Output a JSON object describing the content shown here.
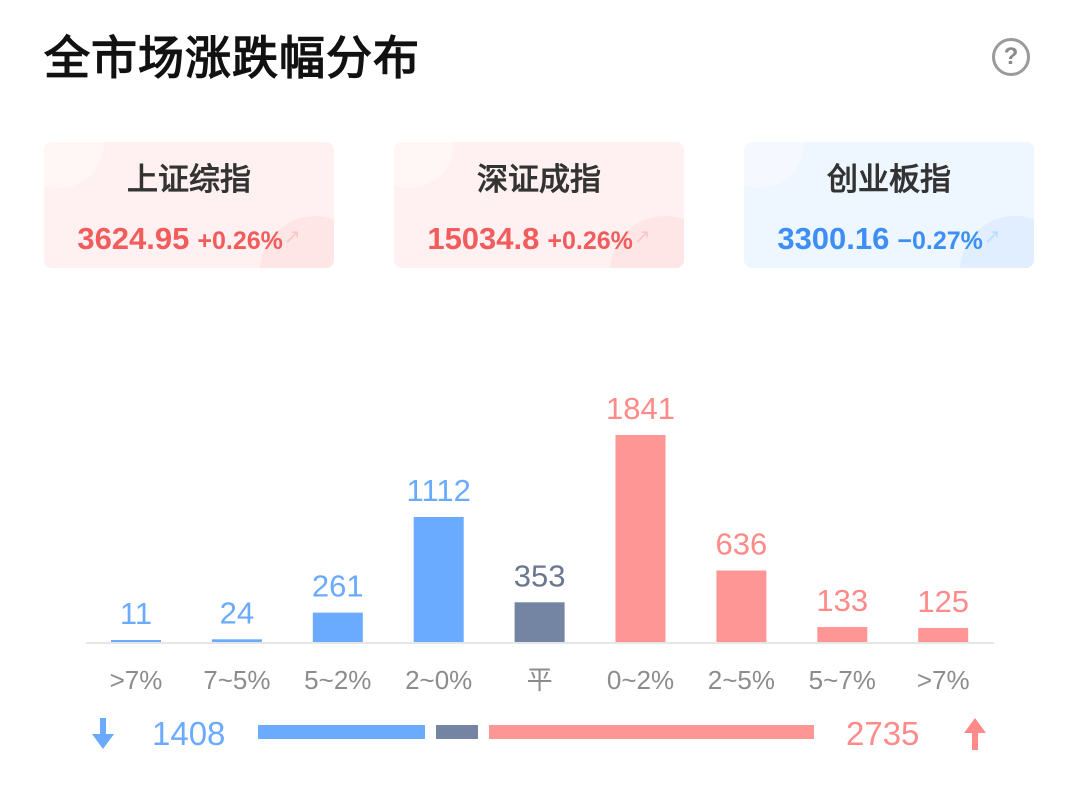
{
  "header": {
    "title": "全市场涨跌幅分布",
    "help_icon": "?"
  },
  "indices": [
    {
      "name": "上证综指",
      "value": "3624.95",
      "change": "+0.26%",
      "trend": "up"
    },
    {
      "name": "深证成指",
      "value": "15034.8",
      "change": "+0.26%",
      "trend": "up"
    },
    {
      "name": "创业板指",
      "value": "3300.16",
      "change": "−0.27%",
      "trend": "down"
    }
  ],
  "colors": {
    "down": "#6aaaff",
    "flat": "#7484a3",
    "up": "#ff9696",
    "down_text": "#6aaaff",
    "flat_text": "#6b7790",
    "up_text": "#ff8a8a"
  },
  "chart_data": {
    "type": "bar",
    "categories": [
      ">7%",
      "7~5%",
      "5~2%",
      "2~0%",
      "平",
      "0~2%",
      "2~5%",
      "5~7%",
      ">7%"
    ],
    "values": [
      11,
      24,
      261,
      1112,
      353,
      1841,
      636,
      133,
      125
    ],
    "groups": [
      "down",
      "down",
      "down",
      "down",
      "flat",
      "up",
      "up",
      "up",
      "up"
    ],
    "ylim": [
      0,
      1841
    ]
  },
  "summary": {
    "down_count": "1408",
    "up_count": "2735",
    "down_total": 1408,
    "flat_total": 353,
    "up_total": 2735
  }
}
